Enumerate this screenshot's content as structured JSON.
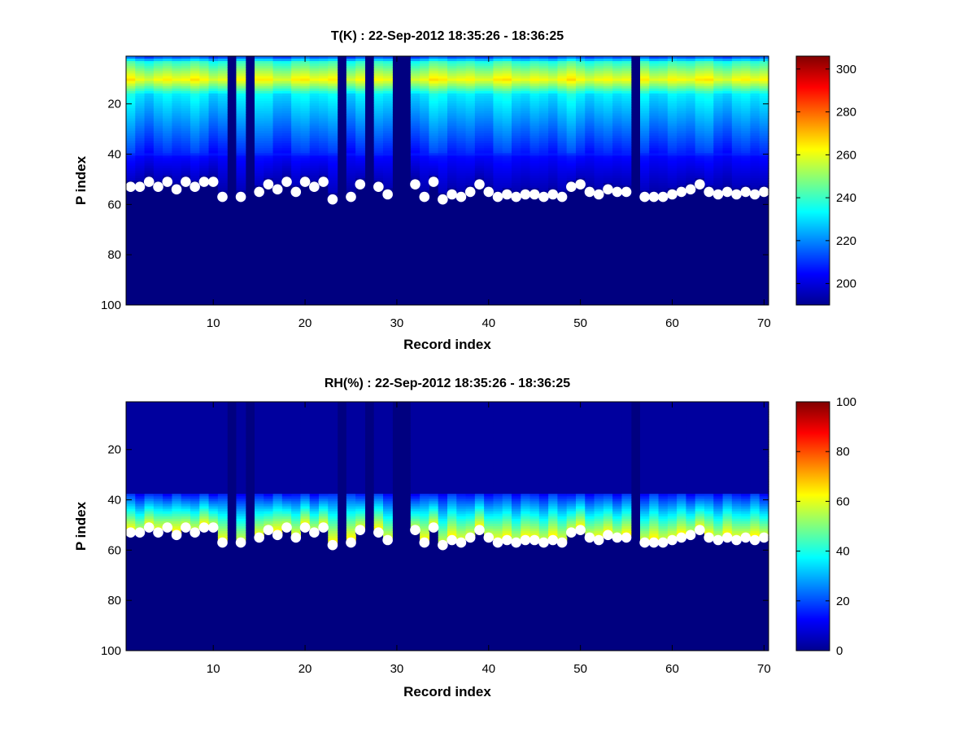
{
  "chart_data": [
    {
      "type": "heatmap",
      "title": "T(K) : 22-Sep-2012 18:35:26 - 18:36:25",
      "xlabel": "Record index",
      "ylabel": "P index",
      "xlim": [
        0.5,
        70.5
      ],
      "ylim": [
        100,
        1
      ],
      "x_ticks": [
        10,
        20,
        30,
        40,
        50,
        60,
        70
      ],
      "y_ticks": [
        20,
        40,
        60,
        80,
        100
      ],
      "colorbar": {
        "min": 190,
        "max": 306,
        "ticks": [
          200,
          220,
          240,
          260,
          280,
          300
        ]
      },
      "missing_records": [
        12,
        14,
        24,
        27,
        30,
        31,
        56
      ],
      "profile": {
        "surface_value": 193,
        "peak_index": 10,
        "peak_value": 262
      },
      "surface_markers": {
        "x": [
          1,
          2,
          3,
          4,
          5,
          6,
          7,
          8,
          9,
          10,
          11,
          13,
          15,
          16,
          17,
          18,
          19,
          20,
          21,
          22,
          23,
          25,
          26,
          28,
          29,
          32,
          33,
          34,
          35,
          36,
          37,
          38,
          39,
          40,
          41,
          42,
          43,
          44,
          45,
          46,
          47,
          48,
          49,
          50,
          51,
          52,
          53,
          54,
          55,
          57,
          58,
          59,
          60,
          61,
          62,
          63,
          64,
          65,
          66,
          67,
          68,
          69,
          70
        ],
        "y": [
          53,
          53,
          51,
          53,
          51,
          54,
          51,
          53,
          51,
          51,
          57,
          57,
          55,
          52,
          54,
          51,
          55,
          51,
          53,
          51,
          58,
          57,
          52,
          53,
          56,
          52,
          57,
          51,
          58,
          56,
          57,
          55,
          52,
          55,
          57,
          56,
          57,
          56,
          56,
          57,
          56,
          57,
          53,
          52,
          55,
          56,
          54,
          55,
          55,
          57,
          57,
          57,
          56,
          55,
          54,
          52,
          55,
          56,
          55,
          56,
          55,
          56,
          55
        ]
      }
    },
    {
      "type": "heatmap",
      "title": "RH(%) : 22-Sep-2012 18:35:26 - 18:36:25",
      "xlabel": "Record index",
      "ylabel": "P index",
      "xlim": [
        0.5,
        70.5
      ],
      "ylim": [
        100,
        1
      ],
      "x_ticks": [
        10,
        20,
        30,
        40,
        50,
        60,
        70
      ],
      "y_ticks": [
        20,
        40,
        60,
        80,
        100
      ],
      "colorbar": {
        "min": 0,
        "max": 100,
        "ticks": [
          0,
          20,
          40,
          60,
          80,
          100
        ]
      },
      "missing_records": [
        12,
        14,
        24,
        27,
        30,
        31,
        56
      ],
      "profile": {
        "surface_value": 3,
        "moist_layer_start": 38,
        "near_surface_value": 60
      },
      "surface_markers": {
        "x": [
          1,
          2,
          3,
          4,
          5,
          6,
          7,
          8,
          9,
          10,
          11,
          13,
          15,
          16,
          17,
          18,
          19,
          20,
          21,
          22,
          23,
          25,
          26,
          28,
          29,
          32,
          33,
          34,
          35,
          36,
          37,
          38,
          39,
          40,
          41,
          42,
          43,
          44,
          45,
          46,
          47,
          48,
          49,
          50,
          51,
          52,
          53,
          54,
          55,
          57,
          58,
          59,
          60,
          61,
          62,
          63,
          64,
          65,
          66,
          67,
          68,
          69,
          70
        ],
        "y": [
          53,
          53,
          51,
          53,
          51,
          54,
          51,
          53,
          51,
          51,
          57,
          57,
          55,
          52,
          54,
          51,
          55,
          51,
          53,
          51,
          58,
          57,
          52,
          53,
          56,
          52,
          57,
          51,
          58,
          56,
          57,
          55,
          52,
          55,
          57,
          56,
          57,
          56,
          56,
          57,
          56,
          57,
          53,
          52,
          55,
          56,
          54,
          55,
          55,
          57,
          57,
          57,
          56,
          55,
          54,
          52,
          55,
          56,
          55,
          56,
          55,
          56,
          55
        ]
      }
    }
  ]
}
